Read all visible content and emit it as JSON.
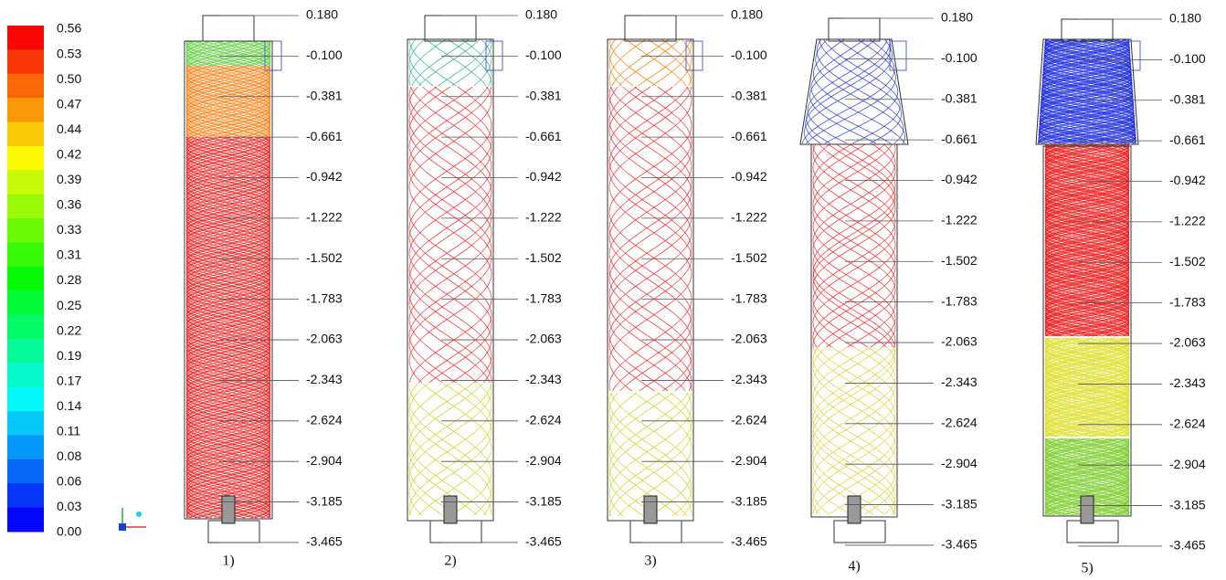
{
  "colorbar": {
    "labels": [
      "0.56",
      "0.53",
      "0.50",
      "0.47",
      "0.44",
      "0.42",
      "0.39",
      "0.36",
      "0.33",
      "0.31",
      "0.28",
      "0.25",
      "0.22",
      "0.19",
      "0.17",
      "0.14",
      "0.11",
      "0.08",
      "0.06",
      "0.03",
      "0.00"
    ]
  },
  "levels": [
    "0.180",
    "-0.100",
    "-0.381",
    "-0.661",
    "-0.942",
    "-1.222",
    "-1.502",
    "-1.783",
    "-2.063",
    "-2.343",
    "-2.624",
    "-2.904",
    "-3.185",
    "-3.465"
  ],
  "panels": [
    {
      "label": "1)"
    },
    {
      "label": "2)"
    },
    {
      "label": "3)"
    },
    {
      "label": "4)"
    },
    {
      "label": "5)"
    }
  ]
}
